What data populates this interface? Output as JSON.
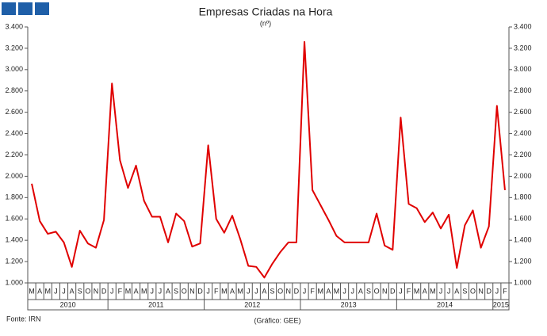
{
  "chart_data": {
    "type": "line",
    "title": "Empresas Criadas na Hora",
    "subtitle": "(nº)",
    "source": "Fonte: IRN",
    "credit": "(Gráfico: GEE)",
    "categories": [
      "M",
      "A",
      "M",
      "J",
      "J",
      "A",
      "S",
      "O",
      "N",
      "D",
      "J",
      "F",
      "M",
      "A",
      "M",
      "J",
      "J",
      "A",
      "S",
      "O",
      "N",
      "D",
      "J",
      "F",
      "M",
      "A",
      "M",
      "J",
      "J",
      "A",
      "S",
      "O",
      "N",
      "D",
      "J",
      "F",
      "M",
      "A",
      "M",
      "J",
      "J",
      "A",
      "S",
      "O",
      "N",
      "D",
      "J",
      "F",
      "M",
      "A",
      "M",
      "J",
      "J",
      "A",
      "S",
      "O",
      "N",
      "D",
      "J",
      "F"
    ],
    "years": [
      "2010",
      "2011",
      "2012",
      "2013",
      "2014",
      "2015"
    ],
    "series": [
      {
        "color": "#e00000",
        "values": [
          1930,
          1580,
          1460,
          1480,
          1380,
          1150,
          1490,
          1370,
          1330,
          1590,
          2870,
          2150,
          1890,
          2100,
          1770,
          1620,
          1620,
          1380,
          1650,
          1580,
          1340,
          1370,
          2290,
          1600,
          1470,
          1630,
          1410,
          1160,
          1150,
          1050,
          1180,
          1290,
          1380,
          1380,
          3260,
          1870,
          1730,
          1590,
          1440,
          1380,
          1380,
          1380,
          1380,
          1650,
          1350,
          1310,
          2550,
          1740,
          1700,
          1570,
          1660,
          1510,
          1640,
          1140,
          1540,
          1680,
          1330,
          1530,
          2660,
          1870
        ]
      }
    ],
    "ylim": [
      1000,
      3400
    ],
    "yticks": [
      {
        "value": 1000,
        "label": "1.000"
      },
      {
        "value": 1200,
        "label": "1.200"
      },
      {
        "value": 1400,
        "label": "1.400"
      },
      {
        "value": 1600,
        "label": "1.600"
      },
      {
        "value": 1800,
        "label": "1.800"
      },
      {
        "value": 2000,
        "label": "2.000"
      },
      {
        "value": 2200,
        "label": "2.200"
      },
      {
        "value": 2400,
        "label": "2.400"
      },
      {
        "value": 2600,
        "label": "2.600"
      },
      {
        "value": 2800,
        "label": "2.800"
      },
      {
        "value": 3000,
        "label": "3.000"
      },
      {
        "value": 3200,
        "label": "3.200"
      },
      {
        "value": 3400,
        "label": "3.400"
      }
    ],
    "right_axis": true,
    "grid": false
  }
}
